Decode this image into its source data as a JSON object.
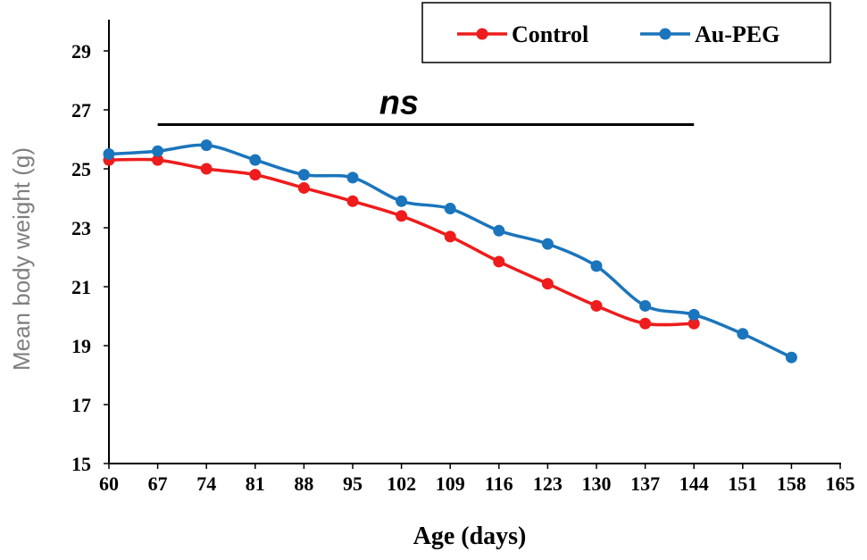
{
  "chart_data": {
    "type": "line",
    "xlabel": "Age (days)",
    "ylabel": "Mean body weight (g)",
    "x_ticks": [
      60,
      67,
      74,
      81,
      88,
      95,
      102,
      109,
      116,
      123,
      130,
      137,
      144,
      151,
      158,
      165
    ],
    "y_ticks": [
      15,
      17,
      19,
      21,
      23,
      25,
      27,
      29
    ],
    "xlim": [
      60,
      165
    ],
    "ylim": [
      15,
      30
    ],
    "grid": false,
    "legend_position": "top-right",
    "annotation": {
      "text": "ns",
      "line_from_x": 67,
      "line_to_x": 144,
      "line_y": 26.5
    },
    "series": [
      {
        "name": "Control",
        "color": "#ee1c1c",
        "x": [
          60,
          67,
          74,
          81,
          88,
          95,
          102,
          109,
          116,
          123,
          130,
          137,
          144
        ],
        "values": [
          25.3,
          25.3,
          25.0,
          24.8,
          24.35,
          23.9,
          23.4,
          22.7,
          21.85,
          21.1,
          20.35,
          19.75,
          19.75
        ]
      },
      {
        "name": "Au-PEG",
        "color": "#1b75bc",
        "x": [
          60,
          67,
          74,
          81,
          88,
          95,
          102,
          109,
          116,
          123,
          130,
          137,
          144,
          151,
          158
        ],
        "values": [
          25.5,
          25.6,
          25.8,
          25.3,
          24.8,
          24.7,
          23.9,
          23.65,
          22.9,
          22.45,
          21.7,
          20.35,
          20.05,
          19.4,
          18.6
        ]
      }
    ]
  }
}
